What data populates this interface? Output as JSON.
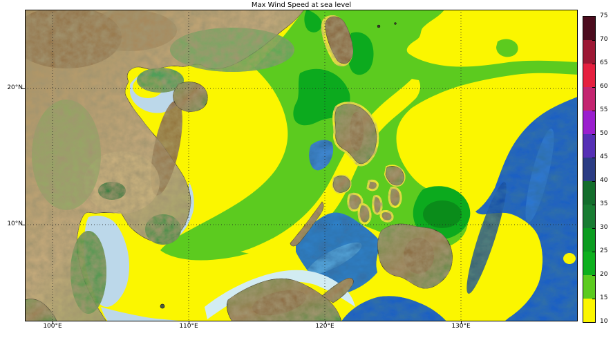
{
  "title": "Max Wind Speed at sea level",
  "axes": {
    "x_tick_labels": [
      "100°E",
      "110°E",
      "120°E",
      "130°E"
    ],
    "y_tick_labels": [
      "20°N",
      "10°N"
    ]
  },
  "colorbar": {
    "min": 10,
    "max": 75,
    "tick_labels": [
      "10",
      "15",
      "20",
      "25",
      "30",
      "35",
      "40",
      "45",
      "50",
      "55",
      "60",
      "65",
      "70",
      "75"
    ],
    "segments": [
      {
        "from": 10,
        "to": 15,
        "color": "#FBF600"
      },
      {
        "from": 15,
        "to": 20,
        "color": "#5CCB1F"
      },
      {
        "from": 20,
        "to": 25,
        "color": "#0DB01E"
      },
      {
        "from": 25,
        "to": 30,
        "color": "#0B9C20"
      },
      {
        "from": 30,
        "to": 35,
        "color": "#187C32"
      },
      {
        "from": 35,
        "to": 40,
        "color": "#136D2C"
      },
      {
        "from": 40,
        "to": 45,
        "color": "#2B3C84"
      },
      {
        "from": 45,
        "to": 50,
        "color": "#5530B5"
      },
      {
        "from": 50,
        "to": 55,
        "color": "#9A1FCE"
      },
      {
        "from": 55,
        "to": 60,
        "color": "#C32570"
      },
      {
        "from": 60,
        "to": 65,
        "color": "#E5203F"
      },
      {
        "from": 65,
        "to": 70,
        "color": "#9C1834"
      },
      {
        "from": 70,
        "to": 75,
        "color": "#4B0C1E"
      }
    ]
  },
  "map_colors": {
    "wind_10_15_yellow": "#FBF600",
    "wind_15_20_green": "#5CCB1F",
    "wind_20_30_darkgreen": "#0CAA1E",
    "deep_ocean_blue": "#1A5FC4",
    "shallow_sea_pale": "#BCD8EA"
  }
}
